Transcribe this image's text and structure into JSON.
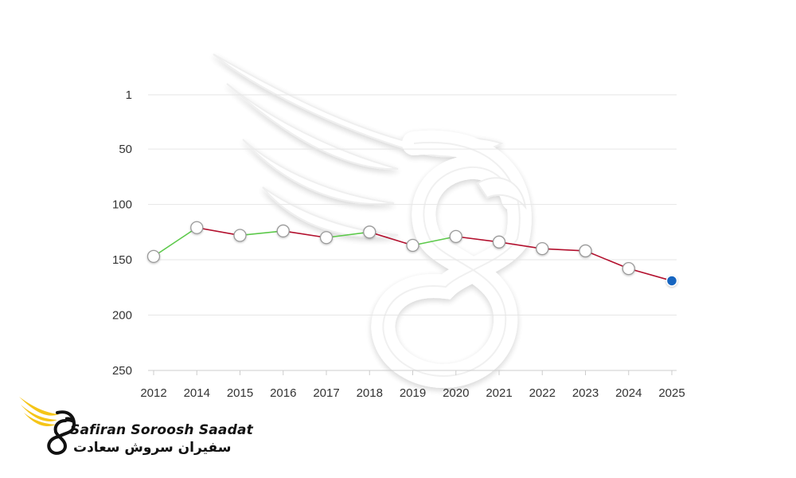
{
  "chart_data": {
    "type": "line",
    "x": [
      "2012",
      "2014",
      "2015",
      "2016",
      "2017",
      "2018",
      "2019",
      "2020",
      "2021",
      "2022",
      "2023",
      "2024",
      "2025"
    ],
    "values": [
      147,
      121,
      128,
      124,
      130,
      125,
      137,
      129,
      134,
      140,
      142,
      158,
      169
    ],
    "y_ticks": [
      1,
      50,
      100,
      150,
      200,
      250
    ],
    "ylim": [
      1,
      250
    ],
    "y_inverted": true,
    "grid": "horizontal",
    "colors": {
      "rise": "#5cc94a",
      "fall": "#b3102e",
      "marker_fill": "#ffffff",
      "marker_stroke": "#9a9a9a",
      "last_marker": "#1565c0",
      "grid": "#e6e6e6",
      "axis": "#cccccc"
    }
  },
  "brand": {
    "name_en": "Safiran Soroosh Saadat",
    "name_fa": "سفیران سروش سعادت",
    "logo_icon": "winged-s-logo-icon",
    "logo_colors": {
      "wing": "#f5c518",
      "body": "#111111"
    }
  },
  "watermark": {
    "icon": "winged-s-watermark-icon"
  }
}
